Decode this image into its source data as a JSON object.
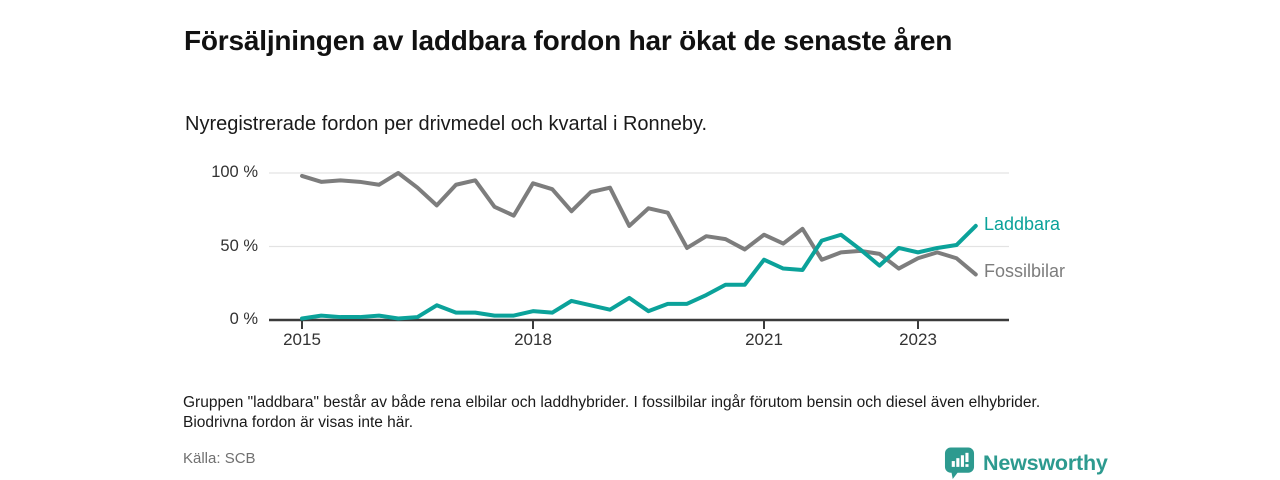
{
  "header": {
    "title": "Försäljningen av laddbara fordon har ökat de senaste åren",
    "subtitle": "Nyregistrerade fordon per drivmedel och kvartal i Ronneby."
  },
  "chart_data": {
    "type": "line",
    "x_unit": "quarter",
    "x_start": "2015-Q1",
    "x_end": "2023-Q4",
    "ylim": [
      0,
      100
    ],
    "grid": "horizontal-only",
    "legend_position": "line-end-right",
    "y_ticks": [
      {
        "label": "0 %",
        "value": 0
      },
      {
        "label": "50 %",
        "value": 50
      },
      {
        "label": "100 %",
        "value": 100
      }
    ],
    "x_ticks": [
      {
        "label": "2015",
        "year": 2015
      },
      {
        "label": "2018",
        "year": 2018
      },
      {
        "label": "2021",
        "year": 2021
      },
      {
        "label": "2023",
        "year": 2023
      }
    ],
    "series": [
      {
        "name": "Fossilbilar",
        "color": "#7d7d7d",
        "values": [
          98,
          94,
          95,
          94,
          92,
          100,
          90,
          78,
          92,
          95,
          77,
          71,
          93,
          89,
          74,
          87,
          90,
          64,
          76,
          73,
          49,
          57,
          55,
          48,
          58,
          52,
          62,
          41,
          46,
          47,
          45,
          35,
          42,
          46,
          42,
          31
        ]
      },
      {
        "name": "Laddbara",
        "color": "#0ba29a",
        "values": [
          1,
          3,
          2,
          2,
          3,
          1,
          2,
          10,
          5,
          5,
          3,
          3,
          6,
          5,
          13,
          10,
          7,
          15,
          6,
          11,
          11,
          17,
          24,
          24,
          41,
          35,
          34,
          54,
          58,
          48,
          37,
          49,
          46,
          49,
          51,
          64
        ]
      }
    ]
  },
  "footnote": "Gruppen \"laddbara\" består av både rena elbilar och laddhybrider. I fossilbilar ingår förutom bensin och diesel även elhybrider. Biodrivna fordon är visas inte här.",
  "source": "Källa: SCB",
  "logo": {
    "text": "Newsworthy",
    "icon": "bar-chart-pin-icon",
    "color": "#2d9a8f"
  },
  "colors": {
    "laddbara": "#0ba29a",
    "fossilbilar": "#7d7d7d",
    "gridline": "#e3e3e3",
    "axis": "#3b3b3b"
  }
}
